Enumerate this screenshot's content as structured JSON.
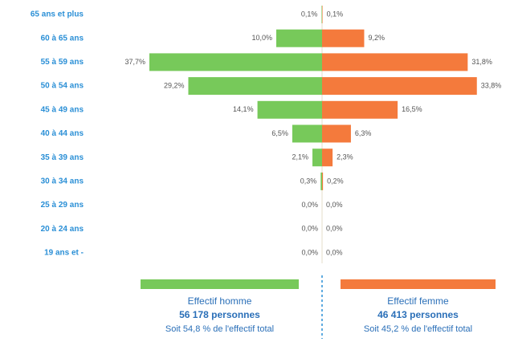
{
  "chart_data": {
    "type": "pyramid",
    "categories": [
      "65 ans et plus",
      "60 à 65 ans",
      "55 à 59 ans",
      "50 à 54 ans",
      "45 à 49 ans",
      "40 à 44 ans",
      "35 à 39 ans",
      "30 à 34 ans",
      "25 à 29 ans",
      "20 à 24 ans",
      "19 ans et -"
    ],
    "series": [
      {
        "name": "Effectif homme",
        "color": "#77c95a",
        "values": [
          0.1,
          10.0,
          37.7,
          29.2,
          14.1,
          6.5,
          2.1,
          0.3,
          0.0,
          0.0,
          0.0
        ],
        "value_labels": [
          "0,1%",
          "10,0%",
          "37,7%",
          "29,2%",
          "14,1%",
          "6,5%",
          "2,1%",
          "0,3%",
          "0,0%",
          "0,0%",
          "0,0%"
        ],
        "persons": "56 178 personnes",
        "share": "Soit 54,8 % de l'effectif total"
      },
      {
        "name": "Effectif femme",
        "color": "#f47a3c",
        "values": [
          0.1,
          9.2,
          31.8,
          33.8,
          16.5,
          6.3,
          2.3,
          0.2,
          0.0,
          0.0,
          0.0
        ],
        "value_labels": [
          "0,1%",
          "9,2%",
          "31,8%",
          "33,8%",
          "16,5%",
          "6,3%",
          "2,3%",
          "0,2%",
          "0,0%",
          "0,0%",
          "0,0%"
        ],
        "persons": "46 413 personnes",
        "share": "Soit 45,2 % de l'effectif total"
      }
    ]
  }
}
